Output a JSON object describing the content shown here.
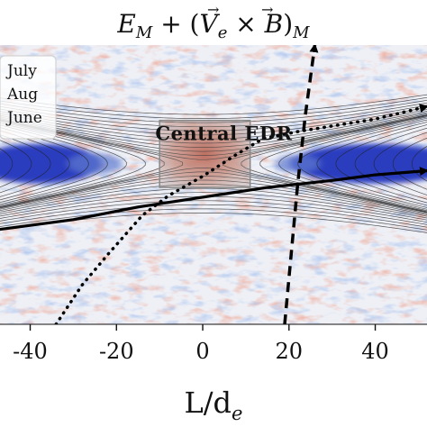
{
  "chart_data": {
    "type": "heatmap",
    "title": "E_M + (V_e × B)_M",
    "title_parts": {
      "E": "E",
      "M": "M",
      "V": "V",
      "e": "e",
      "B": "B"
    },
    "xlabel": "L/d_e",
    "xlabel_parts": {
      "main": "L/d",
      "sub": "e"
    },
    "xlim": [
      -47,
      52
    ],
    "ylim": [
      -1,
      1
    ],
    "x_ticks": [
      -40,
      -20,
      0,
      20,
      40
    ],
    "x_tick_labels": [
      "-40",
      "-20",
      "0",
      "20",
      "40"
    ],
    "legend": {
      "placement": "top-left",
      "entries": [
        "July",
        "Aug",
        "June"
      ]
    },
    "annotations": [
      {
        "text": "Central EDR",
        "x": -11,
        "y": 0.32
      }
    ],
    "edr_box": {
      "x0": -10,
      "x1": 11,
      "y0": -0.02,
      "y1": 0.46
    },
    "colormap": {
      "negative": "#2c3dbf",
      "neutral": "#f2f2f4",
      "positive": "#c8483c"
    },
    "separatrix_field_lines": true,
    "spacecraft_paths": [
      {
        "style": "solid",
        "x": [
          -47,
          -30,
          -15,
          0,
          15,
          30,
          40,
          52
        ],
        "y": [
          -0.32,
          -0.25,
          -0.16,
          -0.09,
          -0.02,
          0.03,
          0.07,
          0.1
        ]
      },
      {
        "style": "dotted",
        "x": [
          -34,
          -28,
          -22,
          -14,
          -8,
          0,
          8,
          14,
          22,
          30,
          40,
          52
        ],
        "y": [
          -1,
          -0.72,
          -0.5,
          -0.22,
          -0.08,
          0.06,
          0.22,
          0.33,
          0.38,
          0.42,
          0.47,
          0.56
        ]
      },
      {
        "style": "dashed",
        "x": [
          19,
          20.5,
          22,
          23.8,
          26
        ],
        "y": [
          -1,
          -0.5,
          0,
          0.5,
          1
        ]
      }
    ]
  }
}
